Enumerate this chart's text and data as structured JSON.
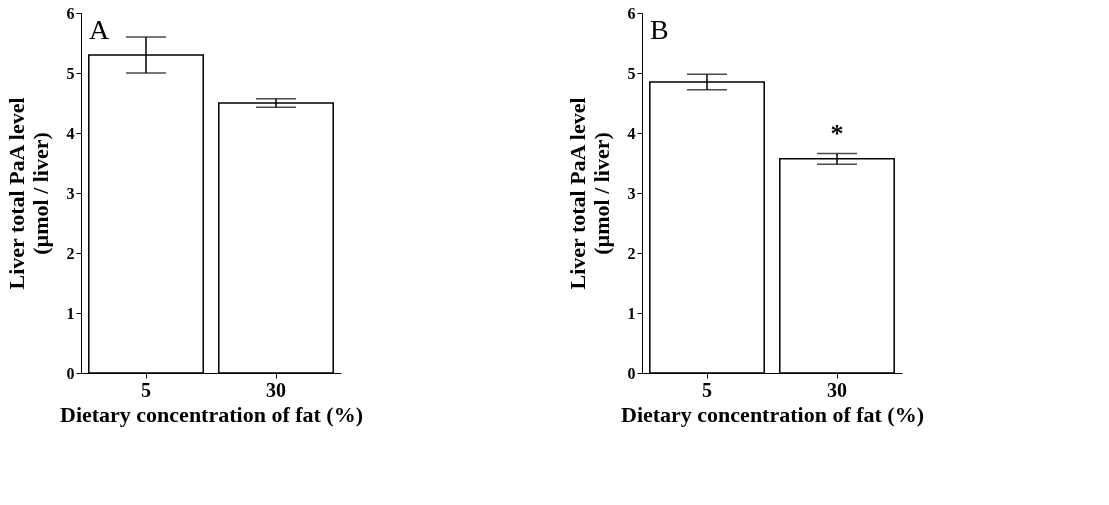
{
  "chart_data": [
    {
      "type": "bar",
      "categories": [
        "5",
        "30"
      ],
      "xlabel": "Dietary concentration of fat  (%)",
      "ylabel": "Liver total PaA level\n(µmol / liver)",
      "ylim": [
        0,
        6
      ],
      "yticks": [
        0,
        1,
        2,
        3,
        4,
        5,
        6
      ],
      "grid": false,
      "series": [
        {
          "color": "#ffffff",
          "values": [
            5.3,
            4.5
          ],
          "errors": [
            0.3,
            0.07
          ]
        }
      ],
      "annotations": [
        "A"
      ]
    },
    {
      "type": "bar",
      "categories": [
        "5",
        "30"
      ],
      "xlabel": "Dietary concentration of fat  (%)",
      "ylabel": "Liver total PaA level\n(µmol / liver)",
      "ylim": [
        0,
        6
      ],
      "yticks": [
        0,
        1,
        2,
        3,
        4,
        5,
        6
      ],
      "grid": false,
      "series": [
        {
          "color": "#ffffff",
          "values": [
            4.85,
            3.57
          ],
          "errors": [
            0.13,
            0.09
          ]
        }
      ],
      "annotations": [
        "B",
        "*"
      ]
    }
  ]
}
